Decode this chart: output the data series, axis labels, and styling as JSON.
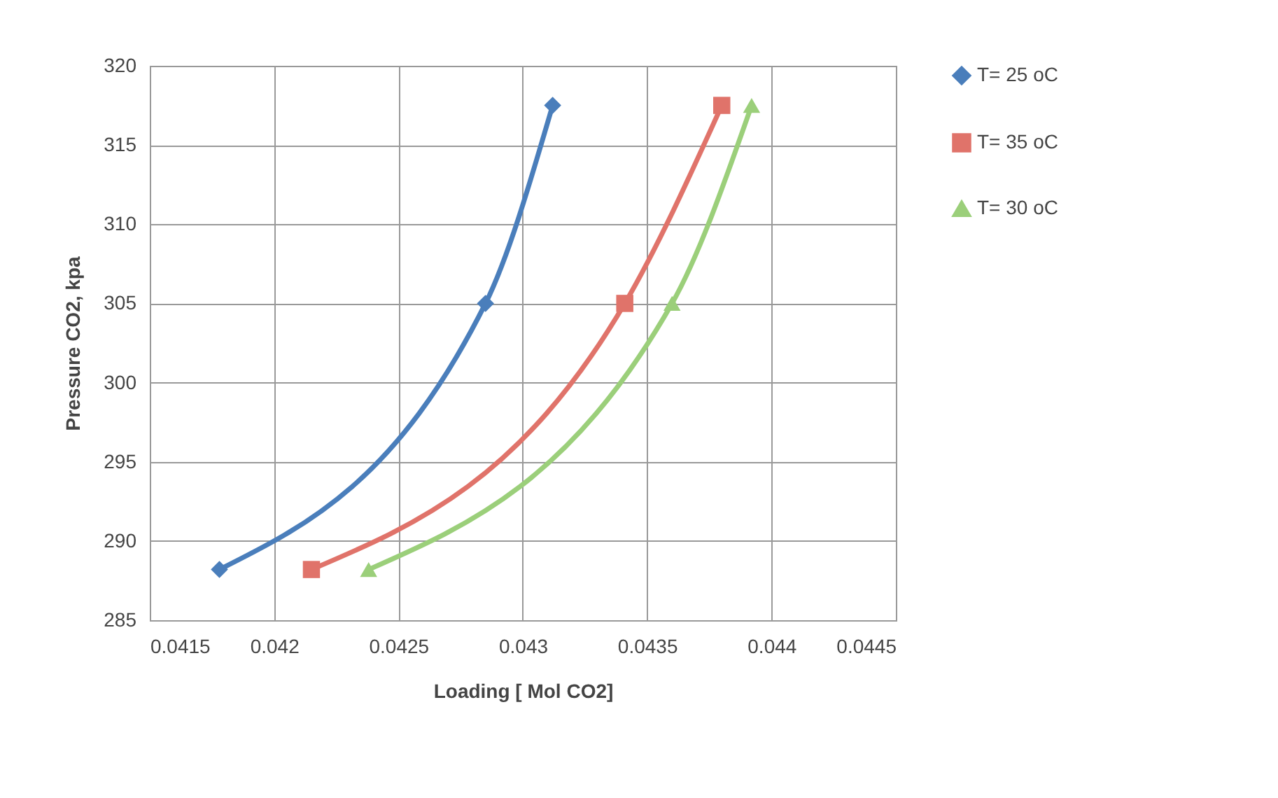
{
  "chart_data": {
    "type": "line",
    "xlabel": "Loading [ Mol CO2]",
    "ylabel": "Pressure CO2, kpa",
    "xlim": [
      0.0415,
      0.0445
    ],
    "xticks": [
      0.0415,
      0.042,
      0.0425,
      0.043,
      0.0435,
      0.044,
      0.0445
    ],
    "ylim": [
      285,
      320
    ],
    "yticks": [
      285,
      290,
      295,
      300,
      305,
      310,
      315,
      320
    ],
    "grid": true,
    "legend": "right",
    "line_style": "solid",
    "series": [
      {
        "name": "T= 25 oC",
        "color": "#4a7ebb",
        "marker": "diamond",
        "x": [
          0.04178,
          0.04285,
          0.04312
        ],
        "values": [
          288.2,
          305,
          317.5
        ]
      },
      {
        "name": "T= 35 oC",
        "color": "#e0736a",
        "marker": "square",
        "x": [
          0.04215,
          0.04341,
          0.0438
        ],
        "values": [
          288.2,
          305,
          317.5
        ]
      },
      {
        "name": "T= 30 oC",
        "color": "#9bcf7a",
        "marker": "triangle",
        "x": [
          0.04238,
          0.0436,
          0.04392
        ],
        "values": [
          288.2,
          305,
          317.5
        ]
      }
    ]
  }
}
